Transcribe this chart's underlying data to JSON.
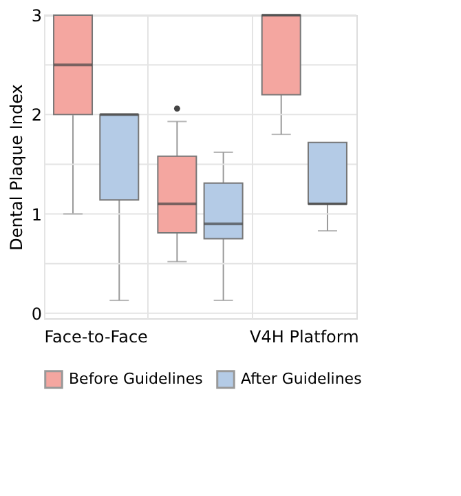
{
  "chart_data": {
    "type": "box",
    "ylabel": "Dental Plaque Index",
    "categories": [
      "Face-to-Face",
      null,
      "V4H Platform"
    ],
    "series": [
      {
        "name": "Before Guidelines",
        "color": "#f4a6a0",
        "boxes": [
          {
            "low": 1.0,
            "q1": 2.0,
            "median": 2.5,
            "q3": 3.0,
            "high": 3.0
          },
          {
            "low": 0.52,
            "q1": 0.81,
            "median": 1.1,
            "q3": 1.58,
            "high": 1.93,
            "outliers": [
              2.06
            ]
          },
          {
            "low": 1.8,
            "q1": 2.2,
            "median": 3.0,
            "q3": 3.0,
            "high": 3.0
          }
        ]
      },
      {
        "name": "After Guidelines",
        "color": "#b4cbe6",
        "boxes": [
          {
            "low": 0.13,
            "q1": 1.14,
            "median": 2.0,
            "q3": 2.0,
            "high": 2.0
          },
          {
            "low": 0.13,
            "q1": 0.75,
            "median": 0.9,
            "q3": 1.31,
            "high": 1.62
          },
          {
            "low": 0.83,
            "q1": 1.1,
            "median": 1.1,
            "q3": 1.72,
            "high": 1.72
          }
        ]
      }
    ],
    "ylim": [
      -0.05,
      3.0
    ],
    "yticks": [
      0,
      {
        "value": 0.5,
        "label": null
      },
      1,
      {
        "value": 1.5,
        "label": null
      },
      2,
      {
        "value": 2.5,
        "label": null
      },
      3
    ],
    "grid": true,
    "legend": "bottom"
  }
}
